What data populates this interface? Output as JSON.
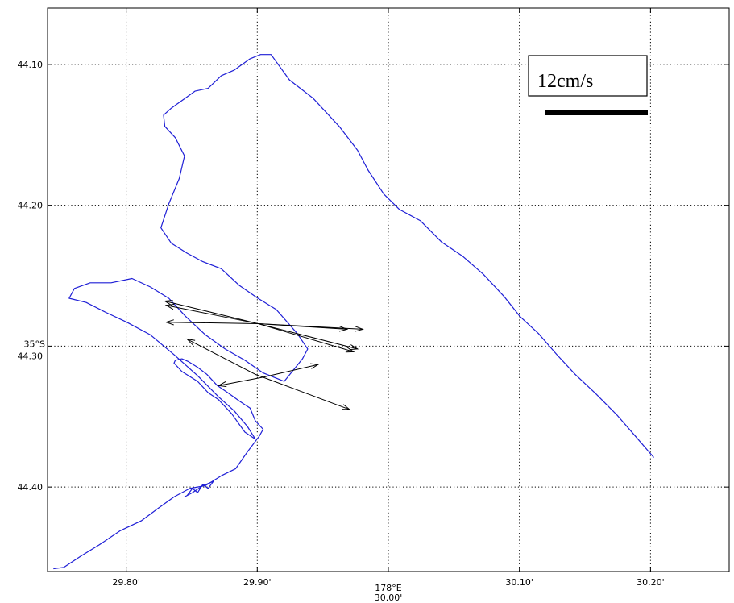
{
  "chart_data": {
    "type": "line",
    "title": "",
    "grid": true,
    "xlim": [
      29.74,
      30.26
    ],
    "ylim": [
      44.06,
      44.46
    ],
    "x_ticks": [
      {
        "value": 29.8,
        "label": "29.80'"
      },
      {
        "value": 29.9,
        "label": "29.90'"
      },
      {
        "value": 30.0,
        "label": "30.00'"
      },
      {
        "value": 30.1,
        "label": "30.10'"
      },
      {
        "value": 30.2,
        "label": "30.20'"
      }
    ],
    "y_ticks": [
      {
        "value": 44.1,
        "label": "44.10'"
      },
      {
        "value": 44.2,
        "label": "44.20'"
      },
      {
        "value": 44.3,
        "label": "44.30'"
      },
      {
        "value": 44.4,
        "label": "44.40'"
      }
    ],
    "x_degree_label": {
      "value": 30.0,
      "label": "178°E"
    },
    "y_degree_label": {
      "value": 44.3,
      "label": "35°S"
    },
    "legend": {
      "label": "12cm/s",
      "position": "top-right",
      "scale_cm_s": 12
    },
    "colors": {
      "track": "#1f1fd6",
      "arrows": "#000000",
      "grid": "#000000"
    },
    "track": {
      "x": [
        29.7445,
        29.7525,
        29.7655,
        29.7795,
        29.7955,
        29.8115,
        29.8245,
        29.8365,
        29.8485,
        29.8605,
        29.8725,
        29.8835,
        29.8925,
        29.9015,
        29.9045,
        29.8985,
        29.8945,
        29.8865,
        29.8775,
        29.8695,
        29.8615,
        29.8545,
        29.8475,
        29.8425,
        29.8375,
        29.8365,
        29.8425,
        29.8545,
        29.8625,
        29.8705,
        29.8805,
        29.8905,
        29.8985,
        29.8925,
        29.8825,
        29.8705,
        29.8545,
        29.8365,
        29.8185,
        29.8005,
        29.7845,
        29.7695,
        29.7565,
        29.7605,
        29.7725,
        29.7885,
        29.8045,
        29.8185,
        29.8325,
        29.8455,
        29.8605,
        29.8755,
        29.8905,
        29.9045,
        29.9205,
        29.9345,
        29.9385,
        29.9305,
        29.9145,
        29.9005,
        29.8865,
        29.8725,
        29.8585,
        29.8465,
        29.8345,
        29.8265,
        29.8325,
        29.8405,
        29.8445,
        29.8375,
        29.8295,
        29.8285,
        29.8345,
        29.8435,
        29.8525,
        29.8625,
        29.8725,
        29.8825,
        29.8945,
        29.9025,
        29.9105,
        29.9245,
        29.9425,
        29.9625,
        29.9765,
        29.9845,
        29.9965,
        30.0085,
        30.0245,
        30.0405,
        30.0565,
        30.0725,
        30.0885,
        30.1005,
        30.1145,
        30.1285,
        30.1425,
        30.1585,
        30.1745,
        30.1885,
        30.2025
      ],
      "y": [
        44.458,
        44.457,
        44.449,
        44.441,
        44.431,
        44.424,
        44.415,
        44.407,
        44.401,
        44.399,
        44.392,
        44.387,
        44.375,
        44.364,
        44.359,
        44.353,
        44.344,
        44.339,
        44.333,
        44.328,
        44.32,
        44.315,
        44.311,
        44.309,
        44.31,
        44.312,
        44.318,
        44.325,
        44.333,
        44.338,
        44.348,
        44.361,
        44.366,
        44.357,
        44.346,
        44.336,
        44.321,
        44.306,
        44.292,
        44.283,
        44.276,
        44.269,
        44.266,
        44.259,
        44.255,
        44.255,
        44.252,
        44.258,
        44.266,
        44.279,
        44.292,
        44.302,
        44.31,
        44.319,
        44.325,
        44.309,
        44.302,
        44.291,
        44.274,
        44.266,
        44.257,
        44.245,
        44.24,
        44.234,
        44.227,
        44.216,
        44.199,
        44.181,
        44.165,
        44.152,
        44.144,
        44.136,
        44.131,
        44.125,
        44.119,
        44.117,
        44.108,
        44.104,
        44.096,
        44.093,
        44.093,
        44.111,
        44.124,
        44.144,
        44.161,
        44.175,
        44.192,
        44.203,
        44.211,
        44.226,
        44.236,
        44.249,
        44.265,
        44.279,
        44.291,
        44.306,
        44.32,
        44.334,
        44.349,
        44.364,
        44.379
      ]
    },
    "detail_loop": {
      "x": [
        29.8465,
        29.8505,
        29.8545,
        29.8585,
        29.8625,
        29.8665,
        29.8585,
        29.8505,
        29.8445,
        29.8465
      ],
      "y": [
        44.406,
        44.401,
        44.404,
        44.398,
        44.401,
        44.396,
        44.399,
        44.404,
        44.407,
        44.406
      ]
    },
    "arrows": [
      {
        "x0": 29.9005,
        "y0": 44.284,
        "x1": 29.8295,
        "y1": 44.268
      },
      {
        "x0": 29.9005,
        "y0": 44.284,
        "x1": 29.8305,
        "y1": 44.283
      },
      {
        "x0": 29.9005,
        "y0": 44.284,
        "x1": 29.9805,
        "y1": 44.288
      },
      {
        "x0": 29.9005,
        "y0": 44.284,
        "x1": 29.9685,
        "y1": 44.288
      },
      {
        "x0": 29.9005,
        "y0": 44.284,
        "x1": 29.9735,
        "y1": 44.304
      },
      {
        "x0": 29.9005,
        "y0": 44.284,
        "x1": 29.9765,
        "y1": 44.302
      },
      {
        "x0": 29.9005,
        "y0": 44.284,
        "x1": 29.8305,
        "y1": 44.271
      },
      {
        "x0": 29.8985,
        "y0": 44.32,
        "x1": 29.8465,
        "y1": 44.295
      },
      {
        "x0": 29.8985,
        "y0": 44.32,
        "x1": 29.9705,
        "y1": 44.345
      },
      {
        "x0": 29.9045,
        "y0": 44.322,
        "x1": 29.8705,
        "y1": 44.328
      },
      {
        "x0": 29.9045,
        "y0": 44.322,
        "x1": 29.9465,
        "y1": 44.313
      }
    ]
  }
}
